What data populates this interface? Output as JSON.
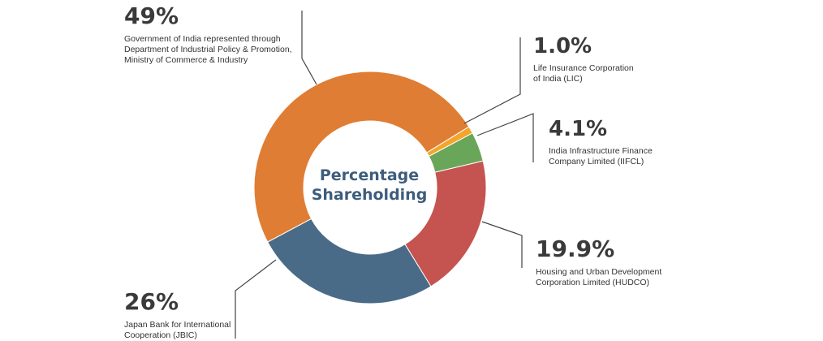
{
  "chart_data": {
    "type": "pie",
    "title": "Percentage Shareholding",
    "slices": [
      {
        "value": 49,
        "label": "49%",
        "name": "Government of India represented through Department of Industrial Policy & Promotion, Ministry of Commerce & Industry",
        "color": "#e07d34"
      },
      {
        "value": 1.0,
        "label": "1.0%",
        "name": "Life Insurance Corporation of India (LIC)",
        "color": "#f5a52a"
      },
      {
        "value": 4.1,
        "label": "4.1%",
        "name": "India Infrastructure Finance Company Limited (IIFCL)",
        "color": "#6aa659"
      },
      {
        "value": 19.9,
        "label": "19.9%",
        "name": "Housing and Urban Development Corporation Limited (HUDCO)",
        "color": "#c55350"
      },
      {
        "value": 26,
        "label": "26%",
        "name": "Japan Bank for International Cooperation (JBIC)",
        "color": "#4a6b87"
      }
    ]
  },
  "center_title_line1": "Percentage",
  "center_title_line2": "Shareholding",
  "callouts": {
    "goi": {
      "pct": "49%",
      "line1": "Government of India represented through",
      "line2": "Department of Industrial Policy & Promotion,",
      "line3": "Ministry of Commerce & Industry"
    },
    "lic": {
      "pct": "1.0%",
      "line1": "Life Insurance Corporation",
      "line2": "of India (LIC)"
    },
    "iifcl": {
      "pct": "4.1%",
      "line1": "India Infrastructure Finance",
      "line2": "Company Limited (IIFCL)"
    },
    "hudco": {
      "pct": "19.9%",
      "line1": "Housing and Urban Development",
      "line2": "Corporation Limited (HUDCO)"
    },
    "jbic": {
      "pct": "26%",
      "line1": "Japan Bank for International",
      "line2": "Cooperation (JBIC)"
    }
  },
  "colors": {
    "leader_line": "#444444",
    "title": "#3e5d7c",
    "text": "#333333"
  }
}
